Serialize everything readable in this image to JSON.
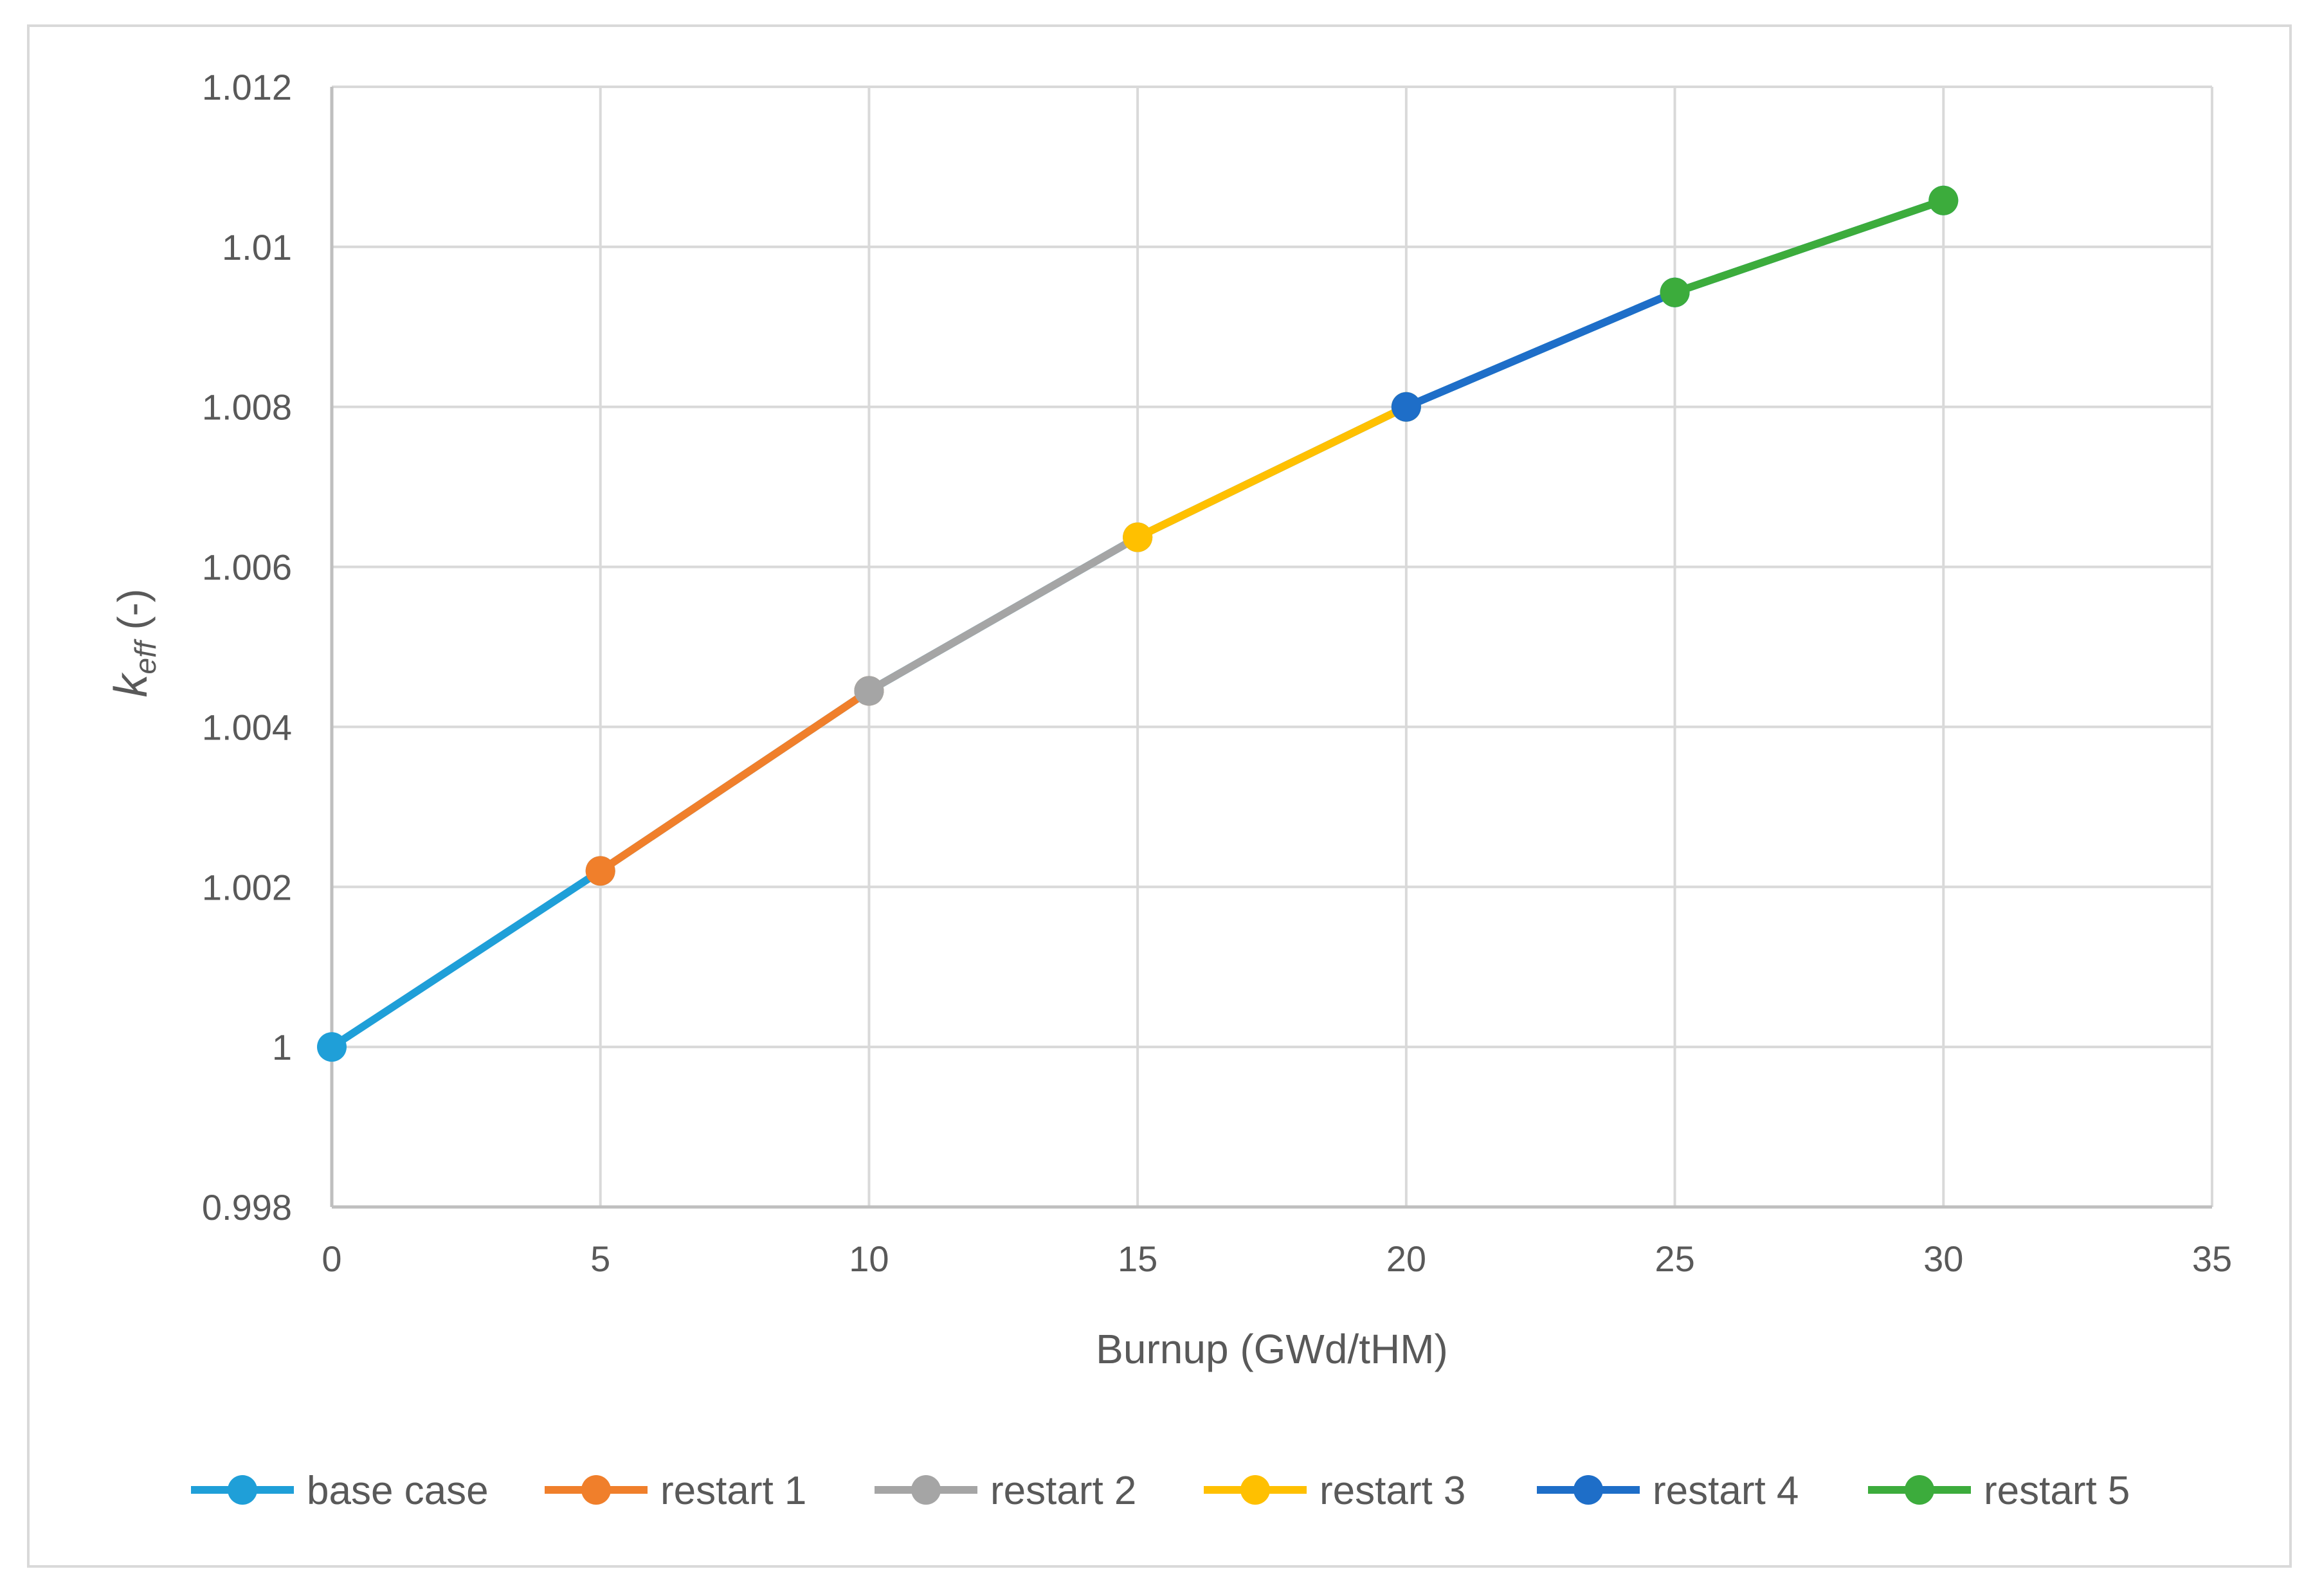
{
  "chart_data": {
    "type": "line",
    "title": "",
    "xlabel": "Burnup (GWd/tHM)",
    "ylabel_main": "k",
    "ylabel_sub": "eff",
    "ylabel_suffix": " (-)",
    "xlim": [
      0,
      35
    ],
    "ylim": [
      0.998,
      1.012
    ],
    "x_ticks": [
      0,
      5,
      10,
      15,
      20,
      25,
      30,
      35
    ],
    "x_tick_labels": [
      "0",
      "5",
      "10",
      "15",
      "20",
      "25",
      "30",
      "35"
    ],
    "y_ticks": [
      0.998,
      1.0,
      1.002,
      1.004,
      1.006,
      1.008,
      1.01,
      1.012
    ],
    "y_tick_labels": [
      "0.998",
      "1",
      "1.002",
      "1.004",
      "1.006",
      "1.008",
      "1.01",
      "1.012"
    ],
    "grid": true,
    "legend_position": "bottom",
    "series": [
      {
        "name": "base case",
        "color": "#1f9fd8",
        "x": [
          0,
          5,
          10,
          15,
          20,
          25,
          30
        ],
        "y": [
          1.0,
          1.0022,
          1.00445,
          1.00637,
          1.008,
          1.00943,
          1.01058
        ]
      },
      {
        "name": "restart 1",
        "color": "#f07f2b",
        "x": [
          5,
          10
        ],
        "y": [
          1.0022,
          1.00445
        ]
      },
      {
        "name": "restart 2",
        "color": "#a5a5a5",
        "x": [
          10,
          15
        ],
        "y": [
          1.00445,
          1.00637
        ]
      },
      {
        "name": "restart 3",
        "color": "#ffc000",
        "x": [
          15,
          20
        ],
        "y": [
          1.00637,
          1.008
        ]
      },
      {
        "name": "restart 4",
        "color": "#1e6ec8",
        "x": [
          20,
          25
        ],
        "y": [
          1.008,
          1.00943
        ]
      },
      {
        "name": "restart 5",
        "color": "#3cac3c",
        "x": [
          25,
          30
        ],
        "y": [
          1.00943,
          1.01058
        ]
      }
    ]
  }
}
